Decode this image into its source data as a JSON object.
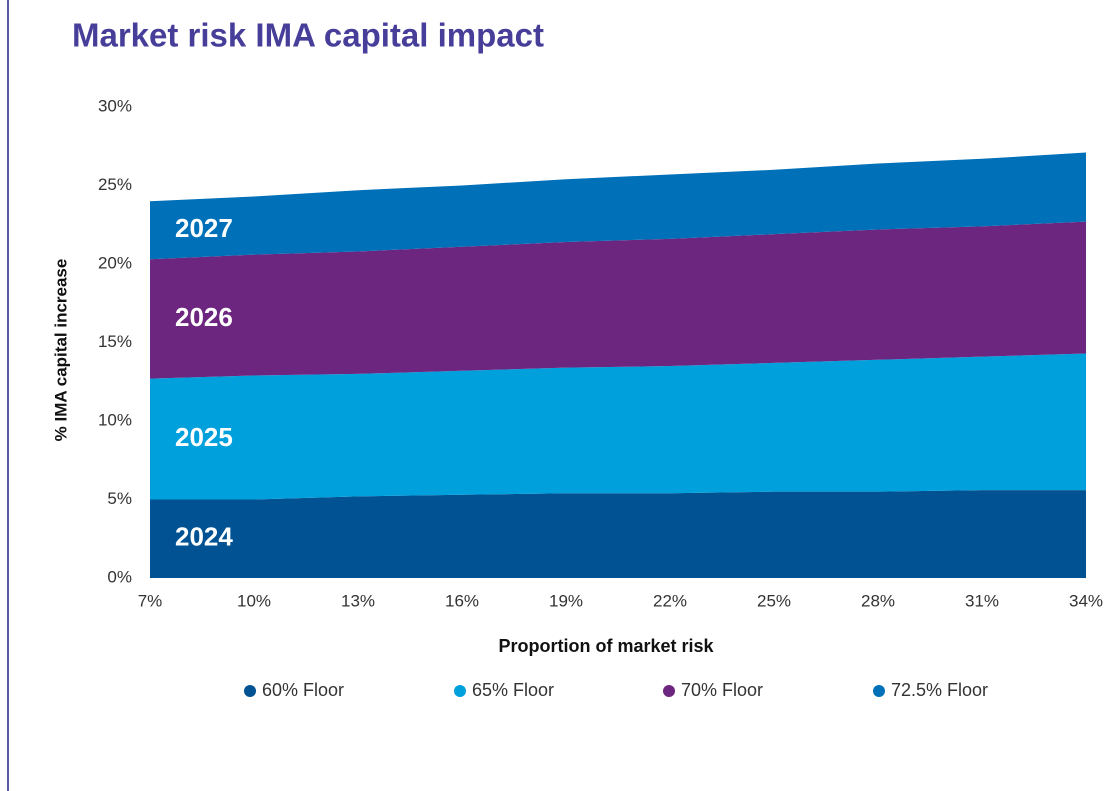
{
  "chart_data": {
    "type": "stacked_area",
    "title": "Market risk IMA capital impact",
    "xlabel": "Proportion of market risk",
    "ylabel": "% IMA capital increase",
    "x": [
      7,
      10,
      13,
      16,
      19,
      22,
      25,
      28,
      31,
      34
    ],
    "xlim": [
      7,
      34
    ],
    "xticks": [
      {
        "value": 7,
        "label": "7%"
      },
      {
        "value": 10,
        "label": "10%"
      },
      {
        "value": 13,
        "label": "13%"
      },
      {
        "value": 16,
        "label": "16%"
      },
      {
        "value": 19,
        "label": "19%"
      },
      {
        "value": 22,
        "label": "22%"
      },
      {
        "value": 25,
        "label": "25%"
      },
      {
        "value": 28,
        "label": "28%"
      },
      {
        "value": 31,
        "label": "31%"
      },
      {
        "value": 34,
        "label": "34%"
      }
    ],
    "ylim": [
      0,
      30
    ],
    "yticks": [
      {
        "value": 0,
        "label": "0%"
      },
      {
        "value": 5,
        "label": "5%"
      },
      {
        "value": 10,
        "label": "10%"
      },
      {
        "value": 15,
        "label": "15%"
      },
      {
        "value": 20,
        "label": "20%"
      },
      {
        "value": 25,
        "label": "25%"
      },
      {
        "value": 30,
        "label": "30%"
      }
    ],
    "legend": "bottom",
    "series": [
      {
        "name": "60% Floor",
        "label": "2024",
        "color": "#005293",
        "values": [
          5.0,
          5.0,
          5.2,
          5.3,
          5.4,
          5.4,
          5.5,
          5.5,
          5.6,
          5.6
        ]
      },
      {
        "name": "65% Floor",
        "label": "2025",
        "color": "#00a0dd",
        "values": [
          7.7,
          7.9,
          7.8,
          7.9,
          8.0,
          8.1,
          8.2,
          8.4,
          8.5,
          8.7
        ]
      },
      {
        "name": "70% Floor",
        "label": "2026",
        "color": "#6d2680",
        "values": [
          7.6,
          7.7,
          7.8,
          7.9,
          8.0,
          8.1,
          8.2,
          8.3,
          8.3,
          8.4
        ]
      },
      {
        "name": "72.5% Floor",
        "label": "2027",
        "color": "#0070b8",
        "values": [
          3.7,
          3.7,
          3.9,
          3.9,
          4.0,
          4.1,
          4.1,
          4.2,
          4.3,
          4.4
        ]
      }
    ]
  }
}
